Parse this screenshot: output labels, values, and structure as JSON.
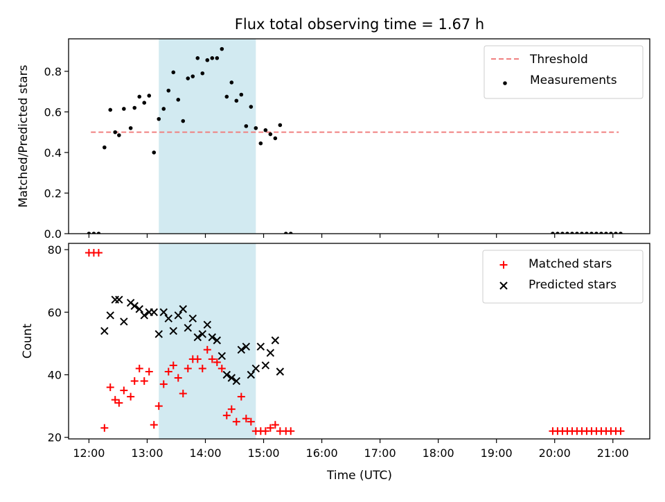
{
  "figure": {
    "title": "Flux total observing time = 1.67 h",
    "xlabel": "Time (UTC)"
  },
  "chart_data": [
    {
      "type": "scatter",
      "ylabel": "Matched/Predicted stars",
      "xlim": [
        "11:39",
        "21:38"
      ],
      "ylim": [
        0,
        0.96
      ],
      "yticks": [
        0.0,
        0.2,
        0.4,
        0.6,
        0.8
      ],
      "ytick_labels": [
        "0.0",
        "0.2",
        "0.4",
        "0.6",
        "0.8"
      ],
      "highlight_span": {
        "start": "13:12",
        "end": "14:52",
        "color": "#add8e6"
      },
      "legend": {
        "placement": "upper right"
      },
      "threshold": {
        "name": "Threshold",
        "value": 0.5,
        "start": "12:02",
        "end": "21:06",
        "color": "#f08080",
        "style": "dashed"
      },
      "series": [
        {
          "name": "Measurements",
          "color": "#000000",
          "marker": "dot",
          "points": [
            {
              "x": "12:00",
              "y": 0.0
            },
            {
              "x": "12:05",
              "y": 0.0
            },
            {
              "x": "12:10",
              "y": 0.0
            },
            {
              "x": "12:16",
              "y": 0.425
            },
            {
              "x": "12:22",
              "y": 0.61
            },
            {
              "x": "12:27",
              "y": 0.5
            },
            {
              "x": "12:31",
              "y": 0.485
            },
            {
              "x": "12:36",
              "y": 0.615
            },
            {
              "x": "12:43",
              "y": 0.52
            },
            {
              "x": "12:47",
              "y": 0.62
            },
            {
              "x": "12:52",
              "y": 0.675
            },
            {
              "x": "12:57",
              "y": 0.645
            },
            {
              "x": "13:02",
              "y": 0.68
            },
            {
              "x": "13:07",
              "y": 0.4
            },
            {
              "x": "13:12",
              "y": 0.565
            },
            {
              "x": "13:17",
              "y": 0.615
            },
            {
              "x": "13:22",
              "y": 0.705
            },
            {
              "x": "13:27",
              "y": 0.795
            },
            {
              "x": "13:32",
              "y": 0.66
            },
            {
              "x": "13:37",
              "y": 0.555
            },
            {
              "x": "13:42",
              "y": 0.765
            },
            {
              "x": "13:47",
              "y": 0.775
            },
            {
              "x": "13:52",
              "y": 0.865
            },
            {
              "x": "13:57",
              "y": 0.79
            },
            {
              "x": "14:02",
              "y": 0.855
            },
            {
              "x": "14:07",
              "y": 0.865
            },
            {
              "x": "14:12",
              "y": 0.865
            },
            {
              "x": "14:17",
              "y": 0.91
            },
            {
              "x": "14:22",
              "y": 0.675
            },
            {
              "x": "14:27",
              "y": 0.745
            },
            {
              "x": "14:32",
              "y": 0.655
            },
            {
              "x": "14:37",
              "y": 0.685
            },
            {
              "x": "14:42",
              "y": 0.53
            },
            {
              "x": "14:47",
              "y": 0.625
            },
            {
              "x": "14:52",
              "y": 0.52
            },
            {
              "x": "14:57",
              "y": 0.445
            },
            {
              "x": "15:02",
              "y": 0.51
            },
            {
              "x": "15:07",
              "y": 0.49
            },
            {
              "x": "15:12",
              "y": 0.47
            },
            {
              "x": "15:17",
              "y": 0.535
            },
            {
              "x": "15:23",
              "y": 0.0
            },
            {
              "x": "15:28",
              "y": 0.0
            },
            {
              "x": "19:58",
              "y": 0.0
            },
            {
              "x": "20:03",
              "y": 0.0
            },
            {
              "x": "20:08",
              "y": 0.0
            },
            {
              "x": "20:13",
              "y": 0.0
            },
            {
              "x": "20:18",
              "y": 0.0
            },
            {
              "x": "20:23",
              "y": 0.0
            },
            {
              "x": "20:28",
              "y": 0.0
            },
            {
              "x": "20:33",
              "y": 0.0
            },
            {
              "x": "20:38",
              "y": 0.0
            },
            {
              "x": "20:43",
              "y": 0.0
            },
            {
              "x": "20:48",
              "y": 0.0
            },
            {
              "x": "20:53",
              "y": 0.0
            },
            {
              "x": "20:58",
              "y": 0.0
            },
            {
              "x": "21:03",
              "y": 0.0
            },
            {
              "x": "21:08",
              "y": 0.0
            }
          ]
        }
      ]
    },
    {
      "type": "scatter",
      "ylabel": "Count",
      "xlim": [
        "11:39",
        "21:38"
      ],
      "ylim": [
        19.5,
        82
      ],
      "yticks": [
        20,
        40,
        60,
        80
      ],
      "ytick_labels": [
        "20",
        "40",
        "60",
        "80"
      ],
      "xticks": [
        "12:00",
        "13:00",
        "14:00",
        "15:00",
        "16:00",
        "17:00",
        "18:00",
        "19:00",
        "20:00",
        "21:00"
      ],
      "xtick_labels": [
        "12:00",
        "13:00",
        "14:00",
        "15:00",
        "16:00",
        "17:00",
        "18:00",
        "19:00",
        "20:00",
        "21:00"
      ],
      "highlight_span": {
        "start": "13:12",
        "end": "14:52",
        "color": "#add8e6"
      },
      "legend": {
        "placement": "upper right"
      },
      "series": [
        {
          "name": "Matched stars",
          "color": "#ff0000",
          "marker": "plus",
          "points": [
            {
              "x": "12:00",
              "y": 79
            },
            {
              "x": "12:05",
              "y": 79
            },
            {
              "x": "12:10",
              "y": 79
            },
            {
              "x": "12:16",
              "y": 23
            },
            {
              "x": "12:22",
              "y": 36
            },
            {
              "x": "12:27",
              "y": 32
            },
            {
              "x": "12:31",
              "y": 31
            },
            {
              "x": "12:36",
              "y": 35
            },
            {
              "x": "12:43",
              "y": 33
            },
            {
              "x": "12:47",
              "y": 38
            },
            {
              "x": "12:52",
              "y": 42
            },
            {
              "x": "12:57",
              "y": 38
            },
            {
              "x": "13:02",
              "y": 41
            },
            {
              "x": "13:07",
              "y": 24
            },
            {
              "x": "13:12",
              "y": 30
            },
            {
              "x": "13:17",
              "y": 37
            },
            {
              "x": "13:22",
              "y": 41
            },
            {
              "x": "13:27",
              "y": 43
            },
            {
              "x": "13:32",
              "y": 39
            },
            {
              "x": "13:37",
              "y": 34
            },
            {
              "x": "13:42",
              "y": 42
            },
            {
              "x": "13:47",
              "y": 45
            },
            {
              "x": "13:52",
              "y": 45
            },
            {
              "x": "13:57",
              "y": 42
            },
            {
              "x": "14:02",
              "y": 48
            },
            {
              "x": "14:07",
              "y": 45
            },
            {
              "x": "14:12",
              "y": 44
            },
            {
              "x": "14:17",
              "y": 42
            },
            {
              "x": "14:22",
              "y": 27
            },
            {
              "x": "14:27",
              "y": 29
            },
            {
              "x": "14:32",
              "y": 25
            },
            {
              "x": "14:37",
              "y": 33
            },
            {
              "x": "14:42",
              "y": 26
            },
            {
              "x": "14:47",
              "y": 25
            },
            {
              "x": "14:52",
              "y": 22
            },
            {
              "x": "14:57",
              "y": 22
            },
            {
              "x": "15:02",
              "y": 22
            },
            {
              "x": "15:07",
              "y": 23
            },
            {
              "x": "15:12",
              "y": 24
            },
            {
              "x": "15:17",
              "y": 22
            },
            {
              "x": "15:23",
              "y": 22
            },
            {
              "x": "15:28",
              "y": 22
            },
            {
              "x": "19:58",
              "y": 22
            },
            {
              "x": "20:03",
              "y": 22
            },
            {
              "x": "20:08",
              "y": 22
            },
            {
              "x": "20:13",
              "y": 22
            },
            {
              "x": "20:18",
              "y": 22
            },
            {
              "x": "20:23",
              "y": 22
            },
            {
              "x": "20:28",
              "y": 22
            },
            {
              "x": "20:33",
              "y": 22
            },
            {
              "x": "20:38",
              "y": 22
            },
            {
              "x": "20:43",
              "y": 22
            },
            {
              "x": "20:48",
              "y": 22
            },
            {
              "x": "20:53",
              "y": 22
            },
            {
              "x": "20:58",
              "y": 22
            },
            {
              "x": "21:03",
              "y": 22
            },
            {
              "x": "21:08",
              "y": 22
            }
          ]
        },
        {
          "name": "Predicted stars",
          "color": "#000000",
          "marker": "x",
          "points": [
            {
              "x": "12:16",
              "y": 54
            },
            {
              "x": "12:22",
              "y": 59
            },
            {
              "x": "12:27",
              "y": 64
            },
            {
              "x": "12:31",
              "y": 64
            },
            {
              "x": "12:36",
              "y": 57
            },
            {
              "x": "12:43",
              "y": 63
            },
            {
              "x": "12:47",
              "y": 62
            },
            {
              "x": "12:52",
              "y": 61
            },
            {
              "x": "12:57",
              "y": 59
            },
            {
              "x": "13:02",
              "y": 60
            },
            {
              "x": "13:07",
              "y": 60
            },
            {
              "x": "13:12",
              "y": 53
            },
            {
              "x": "13:17",
              "y": 60
            },
            {
              "x": "13:22",
              "y": 58
            },
            {
              "x": "13:27",
              "y": 54
            },
            {
              "x": "13:32",
              "y": 59
            },
            {
              "x": "13:37",
              "y": 61
            },
            {
              "x": "13:42",
              "y": 55
            },
            {
              "x": "13:47",
              "y": 58
            },
            {
              "x": "13:52",
              "y": 52
            },
            {
              "x": "13:57",
              "y": 53
            },
            {
              "x": "14:02",
              "y": 56
            },
            {
              "x": "14:07",
              "y": 52
            },
            {
              "x": "14:12",
              "y": 51
            },
            {
              "x": "14:17",
              "y": 46
            },
            {
              "x": "14:22",
              "y": 40
            },
            {
              "x": "14:27",
              "y": 39
            },
            {
              "x": "14:32",
              "y": 38
            },
            {
              "x": "14:37",
              "y": 48
            },
            {
              "x": "14:42",
              "y": 49
            },
            {
              "x": "14:47",
              "y": 40
            },
            {
              "x": "14:52",
              "y": 42
            },
            {
              "x": "14:57",
              "y": 49
            },
            {
              "x": "15:02",
              "y": 43
            },
            {
              "x": "15:07",
              "y": 47
            },
            {
              "x": "15:12",
              "y": 51
            },
            {
              "x": "15:17",
              "y": 41
            }
          ]
        }
      ]
    }
  ]
}
